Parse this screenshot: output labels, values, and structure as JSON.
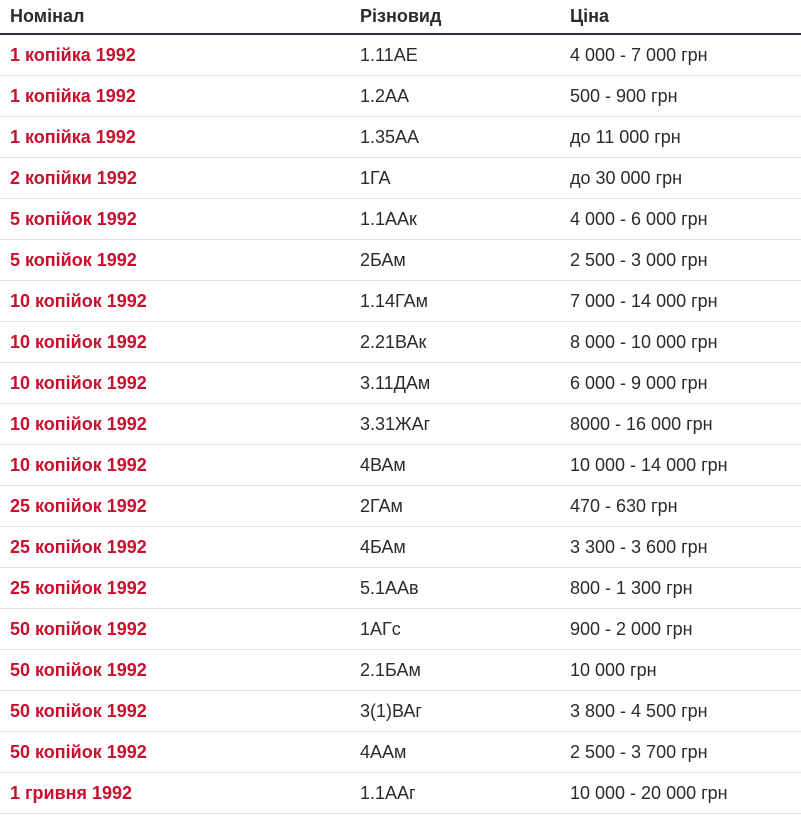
{
  "colors": {
    "nominal_text": "#c8102e",
    "header_border": "#2a2f3a",
    "row_border": "#e2e2e2"
  },
  "table": {
    "headers": [
      "Номінал",
      "Різновид",
      "Ціна"
    ],
    "rows": [
      [
        "1 копійка 1992",
        "1.11АЕ",
        "4 000 - 7 000 грн"
      ],
      [
        "1 копійка 1992",
        "1.2АА",
        "500 - 900 грн"
      ],
      [
        "1 копійка 1992",
        "1.35АА",
        "до 11 000 грн"
      ],
      [
        "2 копійки 1992",
        "1ГА",
        "до 30 000 грн"
      ],
      [
        "5 копійок 1992",
        "1.1ААк",
        "4 000 - 6 000 грн"
      ],
      [
        "5 копійок 1992",
        "2БАм",
        "2 500 - 3 000 грн"
      ],
      [
        "10 копійок 1992",
        "1.14ГАм",
        "7 000 - 14 000 грн"
      ],
      [
        "10 копійок 1992",
        "2.21ВАк",
        "8 000 - 10 000 грн"
      ],
      [
        "10 копійок 1992",
        "3.11ДАм",
        "6 000 - 9 000 грн"
      ],
      [
        "10 копійок 1992",
        "3.31ЖАг",
        "8000 - 16 000 грн"
      ],
      [
        "10 копійок 1992",
        "4ВАм",
        "10 000 - 14 000 грн"
      ],
      [
        "25 копійок 1992",
        "2ГАм",
        "470 - 630 грн"
      ],
      [
        "25 копійок 1992",
        "4БАм",
        "3 300 - 3 600 грн"
      ],
      [
        "25 копійок 1992",
        "5.1ААв",
        "800 - 1 300 грн"
      ],
      [
        "50 копійок 1992",
        "1АГс",
        "900 - 2 000 грн"
      ],
      [
        "50 копійок 1992",
        "2.1БАм",
        "10 000 грн"
      ],
      [
        "50 копійок 1992",
        "3(1)ВАг",
        "3 800 - 4 500 грн"
      ],
      [
        "50 копійок 1992",
        "4ААм",
        "2 500 - 3 700 грн"
      ],
      [
        "1 гривня 1992",
        "1.1ААг",
        "10 000 - 20 000 грн"
      ]
    ]
  }
}
